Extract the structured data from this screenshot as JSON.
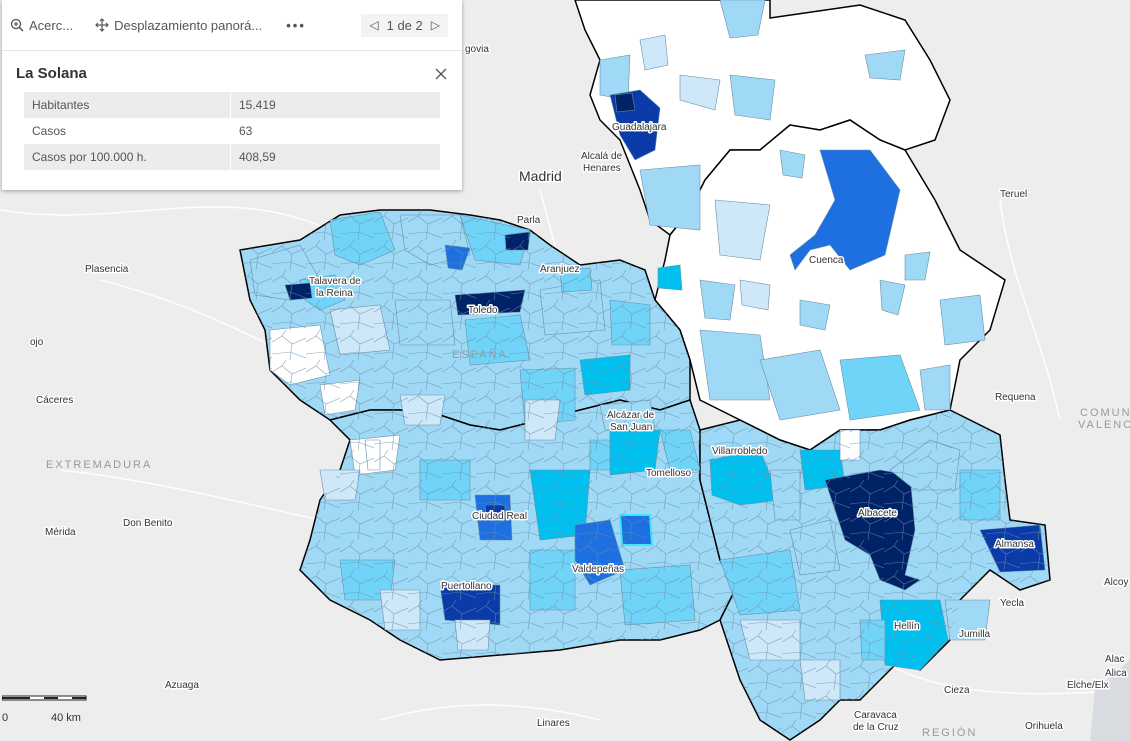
{
  "popup": {
    "toolbar": {
      "zoom_label": "Acerc...",
      "pan_label": "Desplazamiento panorá...",
      "more_label": "•••",
      "pager_text": "1 de 2"
    },
    "title": "La Solana",
    "fields": [
      {
        "label": "Habitantes",
        "value": "15.419"
      },
      {
        "label": "Casos",
        "value": "63"
      },
      {
        "label": "Casos por 100.000 h.",
        "value": "408,59"
      }
    ]
  },
  "map": {
    "region_labels": {
      "espana": "ESPAÑA",
      "extremadura": "EXTREMADURA",
      "comunidad": "COMUNI",
      "valencia": "VALENC",
      "region": "REGIÓN"
    },
    "place_labels": {
      "madrid": "Madrid",
      "guadalajara": "Guadalajara",
      "alcala_1": "Alcalá de",
      "alcala_2": "Henares",
      "parla": "Parla",
      "aranjuez": "Aranjuez",
      "plasencia": "Plasencia",
      "talavera_1": "Talavera de",
      "talavera_2": "la Reina",
      "toledo": "Toledo",
      "caceres": "Cáceres",
      "cuenca": "Cuenca",
      "teruel": "Teruel",
      "requena": "Requena",
      "alcazar_1": "Alcázar de",
      "alcazar_2": "San Juan",
      "villarrobledo": "Villarrobledo",
      "tomelloso": "Tomelloso",
      "ciudad_real": "Ciudad Real",
      "albacete": "Albacete",
      "almansa": "Almansa",
      "don_benito": "Don Benito",
      "merida": "Mérida",
      "valdepenas": "Valdepeñas",
      "puertollano": "Puertollano",
      "yecla": "Yecla",
      "jumilla": "Jumilla",
      "hellin": "Hellín",
      "alcoy": "Alcoy",
      "azuaga": "Azuaga",
      "cieza": "Cieza",
      "linares": "Linares",
      "caravaca_1": "Caravaca",
      "caravaca_2": "de la Cruz",
      "orihuela": "Orihuela",
      "elche": "Elche/Elx",
      "alac": "Alac",
      "alic": "Alica",
      "govia": "govia",
      "ojo": "ojo"
    },
    "scale": {
      "zero": "0",
      "distance": "40 km"
    },
    "colors": {
      "lightest": "#cfe8f9",
      "light": "#9fd9f5",
      "medium": "#70d4f8",
      "cyan": "#00c0f0",
      "blue": "#1e6fe0",
      "darkblue": "#0a3ba8",
      "navy": "#002266",
      "empty": "#ffffff",
      "basemap": "#ededed"
    }
  }
}
